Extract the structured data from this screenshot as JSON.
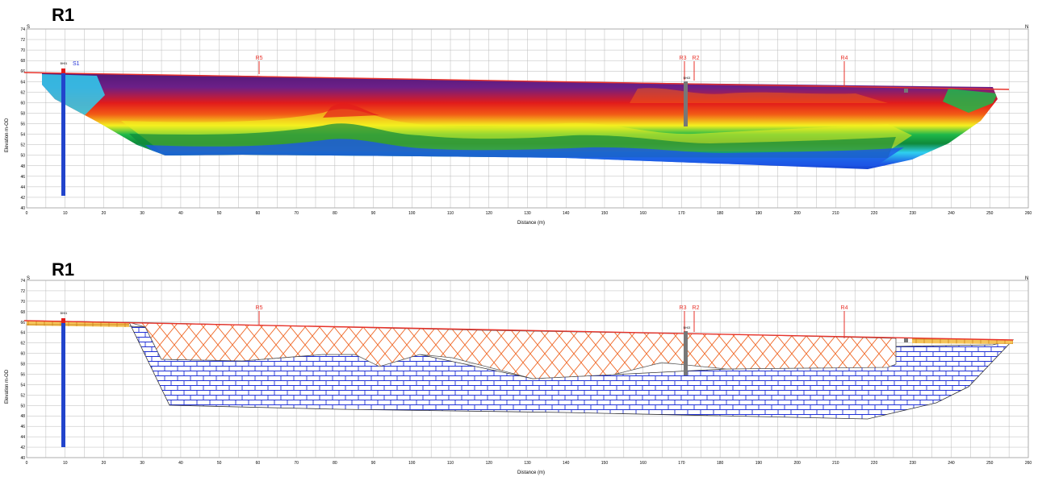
{
  "panels": [
    {
      "title": "R1",
      "type": "resistivity",
      "orientation_left": "S",
      "orientation_right": "N",
      "y_axis_label": "Elevation m-OD",
      "x_axis_label": "Distance (m)",
      "section_labels": [
        "R5",
        "R3",
        "R2",
        "R4"
      ],
      "borehole_labels": [
        "BH01",
        "BH02"
      ],
      "small_labels": [
        "S1"
      ]
    },
    {
      "title": "R1",
      "type": "lithology",
      "orientation_left": "S",
      "orientation_right": "N",
      "y_axis_label": "Elevation m-OD",
      "x_axis_label": "Distance (m)",
      "section_labels": [
        "R5",
        "R3",
        "R2",
        "R4"
      ],
      "borehole_labels": [
        "BH01",
        "BH02"
      ]
    }
  ],
  "colors": {
    "grid": "#b9b9b9",
    "ground_line": "#e8322a",
    "limestone": "#1f2fd6",
    "overburden": "#f06a2a",
    "resistivity_scale": [
      "#0a1ea8",
      "#1d57e6",
      "#2fd0f0",
      "#1eb84a",
      "#0f8a3a",
      "#f4f01f",
      "#f7b21a",
      "#f25a16",
      "#e21b1b",
      "#7a1d8e",
      "#4a176f"
    ]
  },
  "chart_data": [
    {
      "type": "heatmap",
      "title": "R1",
      "xlabel": "Distance (m)",
      "ylabel": "Elevation m-OD",
      "x_ticks": [
        0,
        10,
        20,
        30,
        40,
        50,
        60,
        70,
        80,
        90,
        100,
        110,
        120,
        130,
        140,
        150,
        160,
        170,
        180,
        190,
        200,
        210,
        220,
        230,
        240,
        250,
        260
      ],
      "y_ticks": [
        40,
        42,
        44,
        46,
        48,
        50,
        52,
        54,
        56,
        58,
        60,
        62,
        64,
        66,
        68,
        70,
        72,
        74
      ],
      "xlim": [
        0,
        260
      ],
      "ylim": [
        40,
        74
      ],
      "grid": true
    },
    {
      "type": "heatmap",
      "title": "R1",
      "xlabel": "Distance (m)",
      "ylabel": "Elevation m-OD",
      "x_ticks": [
        0,
        10,
        20,
        30,
        40,
        50,
        60,
        70,
        80,
        90,
        100,
        110,
        120,
        130,
        140,
        150,
        160,
        170,
        180,
        190,
        200,
        210,
        220,
        230,
        240,
        250,
        260
      ],
      "y_ticks": [
        40,
        42,
        44,
        46,
        48,
        50,
        52,
        54,
        56,
        58,
        60,
        62,
        64,
        66,
        68,
        70,
        72,
        74
      ],
      "xlim": [
        0,
        260
      ],
      "ylim": [
        40,
        74
      ],
      "grid": true
    }
  ]
}
